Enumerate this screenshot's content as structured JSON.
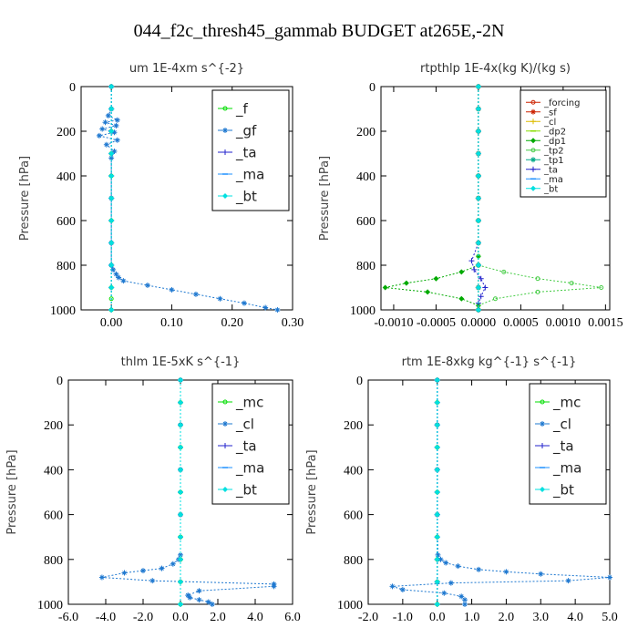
{
  "figure": {
    "title": "044_f2c_thresh45_gammab  BUDGET at265E,-2N"
  },
  "chart_data": [
    {
      "type": "line",
      "title": "um   1E-4xm s^{-2}",
      "ylabel": "Pressure [hPa]",
      "xlabel": "",
      "xlim": [
        -0.05,
        0.3
      ],
      "ylim": [
        1000,
        0
      ],
      "xticks": [
        "0.00",
        "0.10",
        "0.20",
        "0.30"
      ],
      "xtick_values": [
        0.0,
        0.1,
        0.2,
        0.3
      ],
      "yticks": [
        "0",
        "200",
        "400",
        "600",
        "800",
        "1000"
      ],
      "ytick_values": [
        0,
        200,
        400,
        600,
        800,
        1000
      ],
      "legend_position": "top-right",
      "legend_font": 15,
      "series": [
        {
          "name": "_f",
          "color": "#00dd00",
          "marker": "circle",
          "x": [
            0,
            0,
            0,
            0,
            0,
            0,
            0,
            0,
            0,
            0,
            0,
            0
          ],
          "y": [
            0,
            100,
            200,
            300,
            400,
            500,
            600,
            700,
            800,
            900,
            950,
            1000
          ]
        },
        {
          "name": "_gf",
          "color": "#1e78d0",
          "marker": "star",
          "x": [
            0.0,
            0.0,
            -0.005,
            0.01,
            -0.01,
            0.008,
            -0.015,
            0.005,
            -0.02,
            0.01,
            -0.008,
            0.005,
            0.0,
            0.0,
            0.0,
            0.0,
            0.003,
            0.008,
            0.012,
            0.02,
            0.06,
            0.1,
            0.14,
            0.18,
            0.22,
            0.255,
            0.275
          ],
          "y": [
            0,
            100,
            130,
            150,
            160,
            175,
            190,
            205,
            220,
            240,
            260,
            290,
            320,
            500,
            700,
            800,
            820,
            840,
            855,
            870,
            890,
            910,
            930,
            950,
            970,
            990,
            1000
          ]
        },
        {
          "name": "_ta",
          "color": "#2222cc",
          "marker": "plus",
          "x": [
            0,
            0,
            0,
            0,
            0,
            0,
            0,
            0,
            0,
            0,
            0
          ],
          "y": [
            0,
            100,
            200,
            300,
            400,
            500,
            600,
            700,
            800,
            900,
            1000
          ]
        },
        {
          "name": "_ma",
          "color": "#1e90ff",
          "marker": "dash",
          "x": [
            0,
            0,
            0,
            0,
            0,
            0,
            0,
            0,
            0,
            0,
            0
          ],
          "y": [
            0,
            100,
            200,
            300,
            400,
            500,
            600,
            700,
            800,
            900,
            1000
          ]
        },
        {
          "name": "_bt",
          "color": "#00e0e0",
          "marker": "diamond",
          "x": [
            0,
            0,
            0,
            0,
            0,
            0,
            0,
            0,
            0,
            0,
            0
          ],
          "y": [
            0,
            100,
            200,
            300,
            400,
            500,
            600,
            700,
            800,
            900,
            1000
          ]
        }
      ]
    },
    {
      "type": "line",
      "title": "rtpthlp   1E-4x(kg K)/(kg s)",
      "ylabel": "Pressure [hPa]",
      "xlabel": "",
      "xlim": [
        -0.00115,
        0.00155
      ],
      "ylim": [
        1000,
        0
      ],
      "xticks": [
        "-0.0010",
        "-0.0005",
        "0.0000",
        "0.0005",
        "0.0010",
        "0.0015"
      ],
      "xtick_values": [
        -0.001,
        -0.0005,
        0.0,
        0.0005,
        0.001,
        0.0015
      ],
      "yticks": [
        "0",
        "200",
        "400",
        "600",
        "800",
        "1000"
      ],
      "ytick_values": [
        0,
        200,
        400,
        600,
        800,
        1000
      ],
      "legend_position": "top-right",
      "legend_font": 10,
      "series": [
        {
          "name": "_forcing",
          "color": "#cc2200",
          "marker": "circle",
          "x": [
            0,
            0,
            0,
            0,
            0,
            0,
            0,
            0,
            0,
            0,
            0
          ],
          "y": [
            0,
            100,
            200,
            300,
            400,
            500,
            600,
            700,
            800,
            900,
            1000
          ]
        },
        {
          "name": "_sf",
          "color": "#cc2200",
          "marker": "star",
          "x": [
            0,
            0,
            0,
            0,
            0,
            0,
            0,
            0,
            0,
            0,
            0
          ],
          "y": [
            0,
            100,
            200,
            300,
            400,
            500,
            600,
            700,
            800,
            900,
            1000
          ]
        },
        {
          "name": "_cl",
          "color": "#ddbb00",
          "marker": "plus",
          "x": [
            0,
            0,
            0,
            0,
            0,
            0,
            0,
            0,
            0,
            0,
            0
          ],
          "y": [
            0,
            100,
            200,
            300,
            400,
            500,
            600,
            700,
            800,
            900,
            1000
          ]
        },
        {
          "name": "_dp2",
          "color": "#88dd00",
          "marker": "dash",
          "x": [
            0,
            0,
            0,
            0,
            0,
            0,
            0,
            0,
            0,
            0,
            0
          ],
          "y": [
            0,
            100,
            200,
            300,
            400,
            500,
            600,
            700,
            800,
            900,
            1000
          ]
        },
        {
          "name": "_dp1",
          "color": "#00aa00",
          "marker": "diamond",
          "x": [
            0,
            0,
            0,
            0,
            0,
            0.0,
            -0.0002,
            -0.0005,
            -0.00085,
            -0.0011,
            -0.0006,
            -0.0002,
            0.0,
            0.0
          ],
          "y": [
            0,
            200,
            400,
            600,
            760,
            800,
            830,
            860,
            880,
            900,
            920,
            950,
            980,
            1000
          ]
        },
        {
          "name": "_tp2",
          "color": "#44cc44",
          "marker": "circle",
          "x": [
            0,
            0,
            0,
            0,
            0,
            0.0,
            0.0003,
            0.0007,
            0.0011,
            0.00145,
            0.0007,
            0.0002,
            0.0,
            0.0
          ],
          "y": [
            0,
            200,
            400,
            600,
            760,
            800,
            830,
            860,
            880,
            900,
            920,
            950,
            980,
            1000
          ]
        },
        {
          "name": "_tp1",
          "color": "#00aa88",
          "marker": "star",
          "x": [
            0,
            0,
            0,
            0,
            0,
            0,
            0,
            0,
            0,
            0,
            0
          ],
          "y": [
            0,
            100,
            200,
            300,
            400,
            500,
            600,
            700,
            800,
            900,
            1000
          ]
        },
        {
          "name": "_ta",
          "color": "#2222cc",
          "marker": "plus",
          "x": [
            0,
            0,
            0,
            0,
            -8e-05,
            -5e-05,
            3e-05,
            8e-05,
            3e-05,
            0.0,
            0.0
          ],
          "y": [
            0,
            200,
            400,
            700,
            780,
            820,
            860,
            900,
            940,
            970,
            1000
          ]
        },
        {
          "name": "_ma",
          "color": "#1e90ff",
          "marker": "dash",
          "x": [
            0,
            0,
            0,
            0,
            0,
            0,
            0,
            0,
            0,
            0,
            0
          ],
          "y": [
            0,
            100,
            200,
            300,
            400,
            500,
            600,
            700,
            800,
            900,
            1000
          ]
        },
        {
          "name": "_bt",
          "color": "#00e0e0",
          "marker": "diamond",
          "x": [
            0,
            0,
            0,
            0,
            0,
            0,
            0,
            0,
            0,
            0,
            0
          ],
          "y": [
            0,
            100,
            200,
            300,
            400,
            500,
            600,
            700,
            800,
            900,
            1000
          ]
        }
      ]
    },
    {
      "type": "line",
      "title": "thlm   1E-5xK s^{-1}",
      "ylabel": "Pressure [hPa]",
      "xlabel": "",
      "xlim": [
        -6,
        6
      ],
      "ylim": [
        1000,
        0
      ],
      "xticks": [
        "-6.0",
        "-4.0",
        "-2.0",
        "0.0",
        "2.0",
        "4.0",
        "6.0"
      ],
      "xtick_values": [
        -6,
        -4,
        -2,
        0,
        2,
        4,
        6
      ],
      "yticks": [
        "0",
        "200",
        "400",
        "600",
        "800",
        "1000"
      ],
      "ytick_values": [
        0,
        200,
        400,
        600,
        800,
        1000
      ],
      "legend_position": "top-right",
      "legend_font": 15,
      "series": [
        {
          "name": "_mc",
          "color": "#00dd00",
          "marker": "circle",
          "x": [
            0,
            0,
            0,
            0,
            0,
            0,
            0,
            0,
            0,
            0,
            0
          ],
          "y": [
            0,
            100,
            200,
            300,
            400,
            500,
            600,
            700,
            800,
            900,
            1000
          ]
        },
        {
          "name": "_cl",
          "color": "#1e78d0",
          "marker": "star",
          "x": [
            0,
            0,
            0,
            0,
            0.0,
            -0.1,
            -0.4,
            -1.0,
            -2.0,
            -3.0,
            -4.2,
            -1.5,
            5.0,
            5.0,
            1.0,
            0.4,
            0.5,
            1.0,
            1.5,
            1.7
          ],
          "y": [
            0,
            200,
            400,
            600,
            780,
            800,
            820,
            840,
            850,
            860,
            880,
            895,
            910,
            920,
            940,
            960,
            970,
            980,
            990,
            1000
          ]
        },
        {
          "name": "_ta",
          "color": "#2222cc",
          "marker": "plus",
          "x": [
            0,
            0,
            0,
            0,
            0,
            0,
            0,
            0,
            0,
            0,
            0
          ],
          "y": [
            0,
            100,
            200,
            300,
            400,
            500,
            600,
            700,
            800,
            900,
            1000
          ]
        },
        {
          "name": "_ma",
          "color": "#1e90ff",
          "marker": "dash",
          "x": [
            0,
            0,
            0,
            0,
            0,
            0,
            0,
            0,
            0,
            0,
            0
          ],
          "y": [
            0,
            100,
            200,
            300,
            400,
            500,
            600,
            700,
            800,
            900,
            1000
          ]
        },
        {
          "name": "_bt",
          "color": "#00e0e0",
          "marker": "diamond",
          "x": [
            0,
            0,
            0,
            0,
            0,
            0,
            0,
            0,
            0,
            0,
            0
          ],
          "y": [
            0,
            100,
            200,
            300,
            400,
            500,
            600,
            700,
            800,
            900,
            1000
          ]
        }
      ]
    },
    {
      "type": "line",
      "title": "rtm   1E-8xkg kg^{-1} s^{-1}",
      "ylabel": "Pressure [hPa]",
      "xlabel": "",
      "xlim": [
        -2,
        5
      ],
      "ylim": [
        1000,
        0
      ],
      "xticks": [
        "-2.0",
        "-1.0",
        "0.0",
        "1.0",
        "2.0",
        "3.0",
        "4.0",
        "5.0"
      ],
      "xtick_values": [
        -2,
        -1,
        0,
        1,
        2,
        3,
        4,
        5
      ],
      "yticks": [
        "0",
        "200",
        "400",
        "600",
        "800",
        "1000"
      ],
      "ytick_values": [
        0,
        200,
        400,
        600,
        800,
        1000
      ],
      "legend_position": "top-right",
      "legend_font": 15,
      "series": [
        {
          "name": "_mc",
          "color": "#00dd00",
          "marker": "circle",
          "x": [
            0,
            0,
            0,
            0,
            0,
            0,
            0,
            0,
            0,
            0,
            0
          ],
          "y": [
            0,
            100,
            200,
            300,
            400,
            500,
            600,
            700,
            800,
            900,
            1000
          ]
        },
        {
          "name": "_cl",
          "color": "#1e78d0",
          "marker": "star",
          "x": [
            0,
            0,
            0,
            0,
            0.02,
            0.1,
            0.25,
            0.6,
            1.2,
            2.0,
            3.0,
            5.0,
            3.8,
            0.4,
            -1.3,
            -1.0,
            0.2,
            0.7,
            0.8,
            0.8
          ],
          "y": [
            0,
            200,
            400,
            600,
            780,
            800,
            815,
            830,
            845,
            855,
            865,
            880,
            895,
            905,
            920,
            935,
            950,
            965,
            980,
            1000
          ]
        },
        {
          "name": "_ta",
          "color": "#2222cc",
          "marker": "plus",
          "x": [
            0,
            0,
            0,
            0,
            0,
            0,
            0,
            0,
            0,
            0,
            0
          ],
          "y": [
            0,
            100,
            200,
            300,
            400,
            500,
            600,
            700,
            800,
            900,
            1000
          ]
        },
        {
          "name": "_ma",
          "color": "#1e90ff",
          "marker": "dash",
          "x": [
            0,
            0,
            0,
            0,
            0,
            0,
            0,
            0,
            0,
            0,
            0
          ],
          "y": [
            0,
            100,
            200,
            300,
            400,
            500,
            600,
            700,
            800,
            900,
            1000
          ]
        },
        {
          "name": "_bt",
          "color": "#00e0e0",
          "marker": "diamond",
          "x": [
            0,
            0,
            0,
            0,
            0,
            0,
            0,
            0,
            0,
            0,
            0
          ],
          "y": [
            0,
            100,
            200,
            300,
            400,
            500,
            600,
            700,
            800,
            900,
            1000
          ]
        }
      ]
    }
  ]
}
